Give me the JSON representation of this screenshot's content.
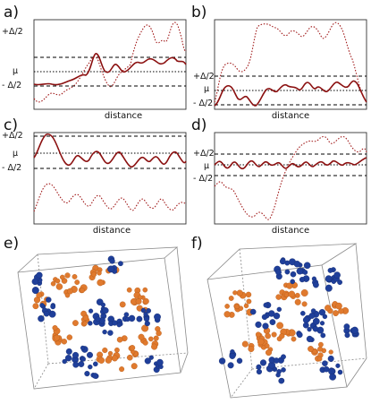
{
  "panels": [
    {
      "letter": "a)",
      "xlabel": "distance",
      "y_labels": {
        "upper": "+Δ/2",
        "mid": "μ",
        "lower": "- Δ/2"
      }
    },
    {
      "letter": "b)",
      "xlabel": "distance",
      "y_labels": {
        "upper": "+Δ/2",
        "mid": "μ",
        "lower": "- Δ/2"
      }
    },
    {
      "letter": "c)",
      "xlabel": "distance",
      "y_labels": {
        "upper": "+Δ/2",
        "mid": "μ",
        "lower": "- Δ/2"
      }
    },
    {
      "letter": "d)",
      "xlabel": "distance",
      "y_labels": {
        "upper": "+Δ/2",
        "mid": "μ",
        "lower": "- Δ/2"
      }
    },
    {
      "letter": "e)"
    },
    {
      "letter": "f)"
    }
  ],
  "colors": {
    "solid_curve": "#8b1010",
    "dotted_curve": "#a01818",
    "sphere_blue": "#1f3f9a",
    "sphere_orange": "#e07a2e",
    "box_edge": "#8a8a8a"
  }
}
